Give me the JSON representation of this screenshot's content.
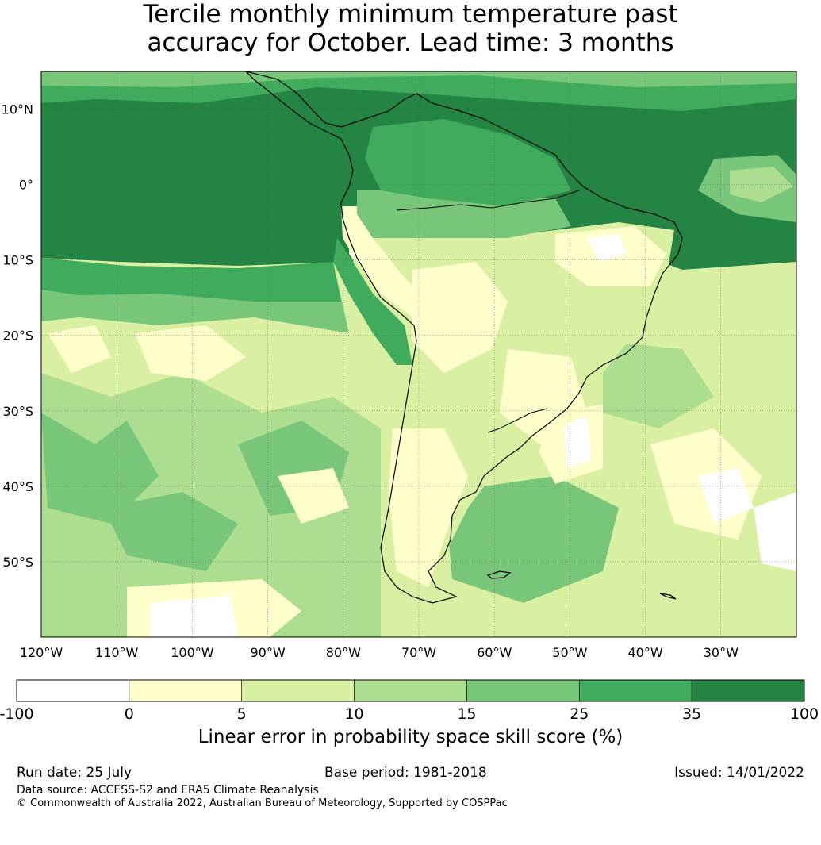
{
  "title": {
    "line1": "Tercile monthly minimum temperature past",
    "line2": "accuracy for October. Lead time: 3 months"
  },
  "map": {
    "lat_labels": [
      "10°N",
      "0°",
      "10°S",
      "20°S",
      "30°S",
      "40°S",
      "50°S"
    ],
    "lon_labels": [
      "120°W",
      "110°W",
      "100°W",
      "90°W",
      "80°W",
      "70°W",
      "60°W",
      "50°W",
      "40°W",
      "30°W"
    ],
    "extent": {
      "lon": [
        -120,
        -20
      ],
      "lat": [
        -60,
        15
      ]
    },
    "gridlines": true
  },
  "colorbar": {
    "ticks": [
      "-100",
      "0",
      "5",
      "10",
      "15",
      "25",
      "35",
      "100"
    ],
    "colors": [
      "#ffffff",
      "#ffffcc",
      "#d9f0a3",
      "#addd8e",
      "#78c679",
      "#41ab5d",
      "#238443"
    ],
    "label": "Linear error in probability space skill score (%)"
  },
  "footer": {
    "run_date": "Run date: 25 July",
    "base_period": "Base period: 1981-2018",
    "issued": "Issued: 14/01/2022",
    "data_source": "Data source: ACCESS-S2 and ERA5 Climate Reanalysis",
    "copyright": "© Commonwealth of Australia 2022, Australian Bureau of Meteorology, Supported by COSPPac"
  }
}
